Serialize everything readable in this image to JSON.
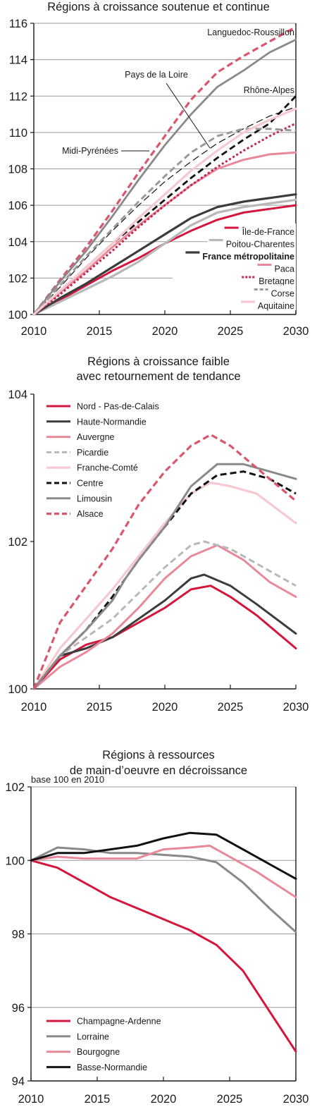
{
  "colors": {
    "red": "#d4163c",
    "dark": "#3c3c3c",
    "gray": "#8a8a8a",
    "pink": "#e8899a",
    "lightgray": "#b8b8b8",
    "lightpink": "#f6c9d0",
    "black": "#111111",
    "dashpink": "#d9566d"
  },
  "chart_data": [
    {
      "type": "line",
      "title": "Régions à croissance soutenue et continue",
      "xlabel": "",
      "ylabel": "",
      "xlim": [
        2010,
        2030
      ],
      "ylim": [
        100,
        116
      ],
      "yticks": [
        100,
        102,
        104,
        106,
        108,
        110,
        112,
        114,
        116
      ],
      "xticks": [
        2010,
        2015,
        2020,
        2025,
        2030
      ],
      "grid": true,
      "legend_position": "bottom-right",
      "series": [
        {
          "name": "Languedoc-Roussillon",
          "color": "#d9566d",
          "dash": "dash",
          "width": 3.2,
          "label": true,
          "x": [
            2010,
            2012,
            2014,
            2016,
            2018,
            2020,
            2022,
            2024,
            2026,
            2028,
            2030
          ],
          "y": [
            100,
            101.9,
            103.7,
            105.7,
            107.8,
            109.8,
            111.8,
            113.3,
            114.2,
            115.0,
            115.8
          ]
        },
        {
          "name": "Rhône-Alpes",
          "color": "#111111",
          "dash": "dash",
          "width": 2.8,
          "label": true,
          "x": [
            2010,
            2012,
            2014,
            2016,
            2018,
            2020,
            2022,
            2024,
            2026,
            2028,
            2030
          ],
          "y": [
            100,
            101.3,
            102.6,
            103.9,
            105.1,
            106.3,
            107.5,
            108.6,
            109.6,
            110.5,
            112.0
          ]
        },
        {
          "name": "Pays de la Loire",
          "color": "#8a8a8a",
          "dash": "solid",
          "width": 2.8,
          "label": true,
          "x": [
            2010,
            2012,
            2014,
            2016,
            2018,
            2020,
            2022,
            2024,
            2026,
            2028,
            2030
          ],
          "y": [
            100,
            101.8,
            103.5,
            105.4,
            107.4,
            109.3,
            111.0,
            112.5,
            113.4,
            114.4,
            115.1
          ]
        },
        {
          "name": "Midi-Pyrénées",
          "color": "#111111",
          "dash": "thin",
          "width": 1.2,
          "label": true,
          "x": [
            2010,
            2012,
            2014,
            2016,
            2018,
            2020,
            2022,
            2024,
            2026,
            2028,
            2030
          ],
          "y": [
            100,
            101.5,
            103.1,
            104.6,
            106.0,
            107.3,
            108.4,
            109.4,
            110.2,
            110.9,
            111.4
          ]
        },
        {
          "name": "Île-de-France",
          "color": "#d4163c",
          "dash": "solid",
          "width": 3,
          "x": [
            2010,
            2012,
            2014,
            2016,
            2018,
            2020,
            2022,
            2024,
            2026,
            2028,
            2030
          ],
          "y": [
            100,
            100.8,
            101.6,
            102.4,
            103.1,
            103.9,
            104.6,
            105.2,
            105.6,
            105.8,
            106.0
          ]
        },
        {
          "name": "Poitou-Charentes",
          "color": "#b8b8b8",
          "dash": "solid",
          "width": 3.2,
          "x": [
            2010,
            2012,
            2014,
            2016,
            2018,
            2020,
            2022,
            2024,
            2026,
            2028,
            2030
          ],
          "y": [
            100,
            100.7,
            101.4,
            102.1,
            102.9,
            103.9,
            104.9,
            105.6,
            105.9,
            106.1,
            106.3
          ]
        },
        {
          "name": "France métropolitaine",
          "color": "#3c3c3c",
          "dash": "solid",
          "width": 3.2,
          "bold": true,
          "x": [
            2010,
            2012,
            2014,
            2016,
            2018,
            2020,
            2022,
            2024,
            2026,
            2028,
            2030
          ],
          "y": [
            100,
            100.9,
            101.7,
            102.6,
            103.5,
            104.4,
            105.3,
            105.9,
            106.2,
            106.4,
            106.6
          ]
        },
        {
          "name": "Paca",
          "color": "#e8899a",
          "dash": "solid",
          "width": 3,
          "x": [
            2010,
            2012,
            2014,
            2016,
            2018,
            2020,
            2022,
            2024,
            2026,
            2028,
            2030
          ],
          "y": [
            100,
            101.2,
            102.4,
            103.7,
            104.9,
            106.0,
            107.1,
            108.0,
            108.5,
            108.8,
            108.9
          ]
        },
        {
          "name": "Bretagne",
          "color": "#c0264d",
          "dash": "dot",
          "width": 3,
          "x": [
            2010,
            2012,
            2014,
            2016,
            2018,
            2020,
            2022,
            2024,
            2026,
            2028,
            2030
          ],
          "y": [
            100,
            101.1,
            102.3,
            103.5,
            104.8,
            106.0,
            107.1,
            108.1,
            109.0,
            109.8,
            110.5
          ]
        },
        {
          "name": "Corse",
          "color": "#9a9a9a",
          "dash": "dash",
          "width": 3,
          "x": [
            2010,
            2012,
            2014,
            2016,
            2018,
            2020,
            2022,
            2024,
            2026,
            2028,
            2030
          ],
          "y": [
            100,
            101.6,
            103.2,
            104.7,
            106.2,
            107.6,
            108.9,
            109.8,
            110.2,
            110.2,
            110.1
          ]
        },
        {
          "name": "Aquitaine",
          "color": "#f6c9d0",
          "dash": "solid",
          "width": 3.2,
          "x": [
            2010,
            2012,
            2014,
            2016,
            2018,
            2020,
            2022,
            2024,
            2026,
            2028,
            2030
          ],
          "y": [
            100,
            101.3,
            102.6,
            103.9,
            105.3,
            106.6,
            107.9,
            109.0,
            110.0,
            110.7,
            111.3
          ]
        }
      ],
      "annotations": [
        "Languedoc-Roussillon",
        "Pays de la Loire",
        "Rhône-Alpes",
        "Midi-Pyrénées"
      ],
      "legend": [
        "Île-de-France",
        "Poitou-Charentes",
        "France métropolitaine",
        "Paca",
        "Bretagne",
        "Corse",
        "Aquitaine"
      ]
    },
    {
      "type": "line",
      "title": "Régions à croissance faible",
      "title2": "avec retournement de tendance",
      "xlabel": "",
      "ylabel": "",
      "xlim": [
        2010,
        2030
      ],
      "ylim": [
        100,
        104
      ],
      "yticks": [
        100,
        102,
        104
      ],
      "xticks": [
        2010,
        2015,
        2020,
        2025,
        2030
      ],
      "grid": false,
      "legend_position": "top-left",
      "series": [
        {
          "name": "Nord - Pas-de-Calais",
          "color": "#d4163c",
          "dash": "solid",
          "width": 3,
          "x": [
            2010,
            2012,
            2014,
            2016,
            2018,
            2020,
            2022,
            2023.5,
            2025,
            2027,
            2030
          ],
          "y": [
            100,
            100.4,
            100.6,
            100.7,
            100.9,
            101.1,
            101.35,
            101.4,
            101.25,
            101.0,
            100.55
          ]
        },
        {
          "name": "Haute-Normandie",
          "color": "#3c3c3c",
          "dash": "solid",
          "width": 3,
          "x": [
            2010,
            2012,
            2014,
            2016,
            2018,
            2020,
            2022,
            2023,
            2025,
            2027,
            2030
          ],
          "y": [
            100,
            100.45,
            100.55,
            100.7,
            100.95,
            101.2,
            101.5,
            101.55,
            101.4,
            101.15,
            100.75
          ]
        },
        {
          "name": "Auvergne",
          "color": "#e8899a",
          "dash": "solid",
          "width": 3,
          "x": [
            2010,
            2012,
            2014,
            2016,
            2018,
            2020,
            2022,
            2024,
            2026,
            2028,
            2030
          ],
          "y": [
            100,
            100.3,
            100.5,
            100.75,
            101.1,
            101.5,
            101.8,
            101.95,
            101.75,
            101.45,
            101.25
          ]
        },
        {
          "name": "Picardie",
          "color": "#b8b8b8",
          "dash": "dash",
          "width": 3,
          "x": [
            2010,
            2012,
            2014,
            2016,
            2018,
            2020,
            2022,
            2023,
            2025,
            2027,
            2030
          ],
          "y": [
            100,
            100.45,
            100.7,
            100.95,
            101.3,
            101.65,
            101.95,
            102.0,
            101.9,
            101.7,
            101.4
          ]
        },
        {
          "name": "Franche-Comté",
          "color": "#f6c9d0",
          "dash": "solid",
          "width": 3.2,
          "x": [
            2010,
            2012,
            2014,
            2016,
            2018,
            2020,
            2022,
            2023.5,
            2025,
            2027,
            2030
          ],
          "y": [
            100,
            100.55,
            100.95,
            101.35,
            101.8,
            102.25,
            102.65,
            102.8,
            102.75,
            102.65,
            102.25
          ]
        },
        {
          "name": "Centre",
          "color": "#111111",
          "dash": "dash",
          "width": 3,
          "x": [
            2010,
            2012,
            2014,
            2016,
            2018,
            2020,
            2022,
            2024,
            2026,
            2028,
            2030
          ],
          "y": [
            100,
            100.45,
            100.8,
            101.25,
            101.75,
            102.2,
            102.65,
            102.9,
            102.95,
            102.85,
            102.65
          ]
        },
        {
          "name": "Limousin",
          "color": "#8a8a8a",
          "dash": "solid",
          "width": 3,
          "x": [
            2010,
            2012,
            2014,
            2016,
            2017,
            2018,
            2020,
            2022,
            2024,
            2026,
            2028,
            2030
          ],
          "y": [
            100,
            100.45,
            100.8,
            101.2,
            101.5,
            101.75,
            102.2,
            102.75,
            103.05,
            103.05,
            102.95,
            102.85
          ]
        },
        {
          "name": "Alsace",
          "color": "#d9566d",
          "dash": "dash",
          "width": 3.2,
          "x": [
            2010,
            2012,
            2014,
            2016,
            2018,
            2020,
            2022,
            2023.5,
            2025,
            2027,
            2030
          ],
          "y": [
            100,
            100.9,
            101.4,
            101.9,
            102.5,
            102.95,
            103.3,
            103.45,
            103.3,
            103.0,
            102.55
          ]
        }
      ],
      "legend": [
        "Nord - Pas-de-Calais",
        "Haute-Normandie",
        "Auvergne",
        "Picardie",
        "Franche-Comté",
        "Centre",
        "Limousin",
        "Alsace"
      ]
    },
    {
      "type": "line",
      "title": "Régions à ressources",
      "title2": "de main-d’oeuvre en décroissance",
      "note": "base 100 en 2010",
      "xlabel": "",
      "ylabel": "",
      "xlim": [
        2010,
        2030
      ],
      "ylim": [
        94,
        102
      ],
      "yticks": [
        94,
        96,
        98,
        100,
        102
      ],
      "xticks": [
        2010,
        2015,
        2020,
        2025,
        2030
      ],
      "grid": true,
      "legend_position": "bottom-left",
      "series": [
        {
          "name": "Champagne-Ardenne",
          "color": "#d4163c",
          "dash": "solid",
          "width": 3,
          "x": [
            2010,
            2012,
            2014,
            2016,
            2018,
            2020,
            2022,
            2023,
            2024,
            2026,
            2028,
            2030
          ],
          "y": [
            100,
            99.8,
            99.4,
            99.0,
            98.7,
            98.4,
            98.1,
            97.9,
            97.7,
            97.0,
            95.9,
            94.8
          ]
        },
        {
          "name": "Lorraine",
          "color": "#8a8a8a",
          "dash": "solid",
          "width": 3,
          "x": [
            2010,
            2012,
            2014,
            2016,
            2018,
            2020,
            2022,
            2024,
            2026,
            2028,
            2030
          ],
          "y": [
            100,
            100.35,
            100.3,
            100.2,
            100.2,
            100.15,
            100.1,
            99.95,
            99.4,
            98.7,
            98.05
          ]
        },
        {
          "name": "Bourgogne",
          "color": "#e8899a",
          "dash": "solid",
          "width": 3,
          "x": [
            2010,
            2012,
            2014,
            2016,
            2018,
            2020,
            2022,
            2023.5,
            2025,
            2027,
            2030
          ],
          "y": [
            100,
            100.1,
            100.05,
            100.05,
            100.05,
            100.3,
            100.35,
            100.4,
            100.1,
            99.7,
            99.0
          ]
        },
        {
          "name": "Basse-Normandie",
          "color": "#111111",
          "dash": "solid",
          "width": 3,
          "x": [
            2010,
            2012,
            2014,
            2016,
            2018,
            2020,
            2022,
            2024,
            2026,
            2028,
            2030
          ],
          "y": [
            100,
            100.2,
            100.2,
            100.3,
            100.4,
            100.6,
            100.75,
            100.7,
            100.3,
            99.9,
            99.5
          ]
        }
      ],
      "legend": [
        "Champagne-Ardenne",
        "Lorraine",
        "Bourgogne",
        "Basse-Normandie"
      ]
    }
  ]
}
